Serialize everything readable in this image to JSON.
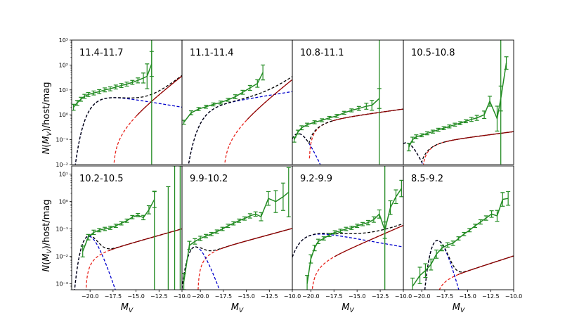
{
  "figure": {
    "ylabel": "N(M_V)/host/mag",
    "xlabel": "M_V"
  },
  "colors": {
    "data": "#228b22",
    "model_total": "#000000",
    "model_bright": "#0000cc",
    "model_faint": "#e8231c",
    "model_faint_overlay": "#8b0000"
  },
  "chart_data": [
    {
      "type": "line",
      "panel_label": "11.4-11.7",
      "row": 0,
      "col": 0,
      "ylim": [
        0.01,
        1000
      ],
      "log_y": true,
      "xlim": [
        -22,
        -10
      ],
      "y_ticks": [
        "10⁻²",
        "10⁻¹",
        "10⁰",
        "10¹",
        "10²",
        "10³"
      ],
      "data": {
        "x": [
          -21.8,
          -21.4,
          -21.0,
          -20.6,
          -20.2,
          -19.6,
          -19.0,
          -18.4,
          -17.8,
          -17.2,
          -16.6,
          -16.0,
          -15.4,
          -14.8,
          -14.2,
          -13.8,
          -13.3
        ],
        "y": [
          2.0,
          3.0,
          4.2,
          5.5,
          6.5,
          7.5,
          8.5,
          10,
          11,
          13,
          15,
          17,
          20,
          24,
          30,
          35,
          110
        ],
        "err": [
          0.12,
          0.1,
          0.08,
          0.08,
          0.08,
          0.08,
          0.08,
          0.08,
          0.08,
          0.08,
          0.08,
          0.08,
          0.08,
          0.1,
          0.2,
          0.5,
          0.5
        ],
        "drop_x": -13.3
      },
      "bright": {
        "phi": 7.5,
        "Ms": -19.5,
        "alpha": -0.85
      },
      "faint": {
        "A": 0.3,
        "Mc": -17.5,
        "w": 3.0,
        "g": 0.65
      }
    },
    {
      "type": "line",
      "panel_label": "11.1-11.4",
      "row": 0,
      "col": 1,
      "ylim": [
        0.01,
        1000
      ],
      "log_y": true,
      "xlim": [
        -22,
        -10
      ],
      "data": {
        "x": [
          -21.8,
          -21.0,
          -20.2,
          -19.4,
          -18.6,
          -17.8,
          -17.0,
          -16.2,
          -15.4,
          -14.6,
          -13.8,
          -13.2
        ],
        "y": [
          0.5,
          1.2,
          1.7,
          2.1,
          2.6,
          3.1,
          4.0,
          5.3,
          8.0,
          12,
          18,
          50
        ],
        "err": [
          0.08,
          0.08,
          0.06,
          0.06,
          0.06,
          0.06,
          0.06,
          0.08,
          0.08,
          0.1,
          0.15,
          0.3
        ]
      },
      "bright": {
        "phi": 2.3,
        "Ms": -19.5,
        "alpha": -1.15
      },
      "faint": {
        "A": 0.2,
        "Mc": -17.5,
        "w": 3.0,
        "g": 0.66
      }
    },
    {
      "type": "line",
      "panel_label": "10.8-11.1",
      "row": 0,
      "col": 2,
      "ylim": [
        0.01,
        1000
      ],
      "log_y": true,
      "xlim": [
        -22,
        -10
      ],
      "data": {
        "x": [
          -21.8,
          -21.4,
          -21.0,
          -20.4,
          -19.6,
          -18.8,
          -18.0,
          -17.2,
          -16.4,
          -15.6,
          -14.8,
          -14.0,
          -13.4,
          -12.6
        ],
        "y": [
          0.1,
          0.2,
          0.3,
          0.4,
          0.5,
          0.6,
          0.75,
          0.9,
          1.2,
          1.5,
          1.8,
          2.2,
          2.4,
          4.5
        ],
        "err": [
          0.1,
          0.08,
          0.08,
          0.06,
          0.06,
          0.06,
          0.06,
          0.06,
          0.06,
          0.06,
          0.08,
          0.12,
          0.2,
          0.4
        ],
        "drop_x": -12.6
      },
      "bright": {
        "phi": 0.28,
        "Ms": -20.5,
        "alpha": 1.2
      },
      "faint": {
        "A": 0.5,
        "Mc": -20.2,
        "w": 1.4,
        "g": 0.12
      }
    },
    {
      "type": "line",
      "panel_label": "10.5-10.8",
      "row": 0,
      "col": 3,
      "ylim": [
        0.01,
        1000
      ],
      "log_y": true,
      "xlim": [
        -22,
        -10
      ],
      "data": {
        "x": [
          -21.4,
          -21.0,
          -20.6,
          -20.0,
          -19.4,
          -18.8,
          -18.2,
          -17.6,
          -17.0,
          -16.4,
          -15.8,
          -15.2,
          -14.6,
          -14.0,
          -13.2,
          -12.6,
          -11.8,
          -11.4,
          -10.8
        ],
        "y": [
          0.05,
          0.1,
          0.13,
          0.15,
          0.18,
          0.21,
          0.25,
          0.29,
          0.34,
          0.4,
          0.46,
          0.55,
          0.65,
          0.75,
          1.0,
          3.5,
          0.7,
          4.5,
          120
        ],
        "err": [
          0.15,
          0.1,
          0.08,
          0.06,
          0.06,
          0.06,
          0.06,
          0.06,
          0.06,
          0.06,
          0.06,
          0.06,
          0.08,
          0.1,
          0.15,
          0.2,
          0.5,
          0.5,
          0.25
        ],
        "drop_x": -11.4
      },
      "bright": {
        "phi": 0.11,
        "Ms": -20.8,
        "alpha": 1.3
      },
      "faint": {
        "A": 0.07,
        "Mc": -20.0,
        "w": 1.2,
        "g": 0.11
      }
    },
    {
      "type": "line",
      "panel_label": "10.2-10.5",
      "row": 1,
      "col": 0,
      "ylim": [
        0.0006,
        20
      ],
      "log_y": true,
      "xlim": [
        -22,
        -10
      ],
      "y_ticks": [
        "10⁻³",
        "10⁻²",
        "10⁻¹",
        "10⁰",
        "10¹"
      ],
      "data": {
        "x": [
          -20.8,
          -20.2,
          -19.6,
          -19.0,
          -18.4,
          -17.8,
          -17.2,
          -16.6,
          -16.0,
          -15.4,
          -14.8,
          -14.2,
          -13.6,
          -13.0
        ],
        "y": [
          0.015,
          0.05,
          0.075,
          0.09,
          0.1,
          0.11,
          0.13,
          0.16,
          0.2,
          0.27,
          0.32,
          0.26,
          0.5,
          1.2
        ],
        "err": [
          0.2,
          0.1,
          0.08,
          0.06,
          0.06,
          0.06,
          0.06,
          0.06,
          0.06,
          0.06,
          0.06,
          0.08,
          0.15,
          0.3
        ],
        "extra_bars": [
          [
            -13.0,
            0.0006,
            2.3
          ],
          [
            -11.5,
            0.0006,
            3.5
          ],
          [
            -10.8,
            0.0006,
            20
          ],
          [
            -10.2,
            0.0006,
            20
          ]
        ]
      },
      "bright": {
        "phi": 0.06,
        "Ms": -19.1,
        "alpha": 1.6
      },
      "faint": {
        "A": 0.01,
        "Mc": -20.5,
        "w": 1.0,
        "g": 0.22
      }
    },
    {
      "type": "line",
      "panel_label": "9.9-10.2",
      "row": 1,
      "col": 1,
      "ylim": [
        0.0006,
        20
      ],
      "log_y": true,
      "xlim": [
        -22,
        -10
      ],
      "data": {
        "x": [
          -21.8,
          -21.2,
          -20.6,
          -20.0,
          -19.4,
          -18.8,
          -18.2,
          -17.6,
          -17.0,
          -16.4,
          -15.8,
          -15.2,
          -14.6,
          -14.0,
          -13.4,
          -12.6,
          -11.8,
          -11.0,
          -10.4
        ],
        "y": [
          0.0012,
          0.025,
          0.035,
          0.045,
          0.055,
          0.065,
          0.08,
          0.1,
          0.13,
          0.16,
          0.2,
          0.24,
          0.3,
          0.35,
          0.28,
          1.3,
          1.0,
          1.5,
          2.2
        ],
        "err": [
          0.3,
          0.15,
          0.1,
          0.08,
          0.06,
          0.06,
          0.06,
          0.06,
          0.06,
          0.06,
          0.06,
          0.06,
          0.08,
          0.08,
          0.15,
          0.25,
          0.4,
          0.5,
          0.9
        ]
      },
      "bright": {
        "phi": 0.03,
        "Ms": -19.6,
        "alpha": 1.4
      },
      "faint": {
        "A": 0.012,
        "Mc": -20.3,
        "w": 1.0,
        "g": 0.21
      }
    },
    {
      "type": "line",
      "panel_label": "9.2-9.9",
      "row": 1,
      "col": 2,
      "ylim": [
        0.0006,
        20
      ],
      "log_y": true,
      "xlim": [
        -22,
        -10
      ],
      "data": {
        "x": [
          -20.4,
          -20.0,
          -19.6,
          -19.2,
          -18.6,
          -18.0,
          -17.4,
          -16.8,
          -16.2,
          -15.6,
          -15.0,
          -14.4,
          -13.8,
          -13.2,
          -12.6,
          -12.0,
          -11.4,
          -10.8,
          -10.2
        ],
        "y": [
          0.001,
          0.008,
          0.02,
          0.035,
          0.045,
          0.06,
          0.075,
          0.085,
          0.1,
          0.11,
          0.13,
          0.15,
          0.17,
          0.22,
          0.35,
          0.09,
          0.6,
          1.5,
          3.0
        ],
        "err": [
          0.3,
          0.15,
          0.1,
          0.08,
          0.06,
          0.06,
          0.06,
          0.06,
          0.06,
          0.06,
          0.06,
          0.06,
          0.08,
          0.1,
          0.15,
          0.3,
          0.25,
          0.25,
          0.3
        ],
        "drop_x": -12.0
      },
      "bright": {
        "phi": 0.1,
        "Ms": -21.0,
        "alpha": -0.85
      },
      "faint": {
        "A": 0.0045,
        "Mc": -20.0,
        "w": 1.1,
        "g": 0.34
      }
    },
    {
      "type": "line",
      "panel_label": "8.5-9.2",
      "row": 1,
      "col": 3,
      "ylim": [
        0.0006,
        20
      ],
      "log_y": true,
      "xlim": [
        -22,
        -10
      ],
      "data": {
        "x": [
          -21.0,
          -20.2,
          -19.6,
          -19.0,
          -18.4,
          -17.8,
          -17.2,
          -16.6,
          -16.0,
          -15.4,
          -14.8,
          -14.2,
          -13.6,
          -13.0,
          -12.4,
          -11.8,
          -11.2,
          -10.6
        ],
        "y": [
          0.0008,
          0.002,
          0.003,
          0.005,
          0.012,
          0.02,
          0.026,
          0.03,
          0.045,
          0.065,
          0.09,
          0.13,
          0.18,
          0.25,
          0.35,
          0.3,
          1.2,
          1.3
        ],
        "err": [
          0.3,
          0.3,
          0.25,
          0.2,
          0.15,
          0.1,
          0.08,
          0.08,
          0.06,
          0.06,
          0.06,
          0.06,
          0.08,
          0.08,
          0.12,
          0.2,
          0.25,
          0.25
        ]
      },
      "bright": {
        "phi": 0.02,
        "Ms": -17.0,
        "alpha": 2.3
      },
      "faint": {
        "A": 0.0012,
        "Mc": -18.6,
        "w": 0.9,
        "g": 0.25
      }
    }
  ],
  "x_ticks": [
    "−20.0",
    "−17.5",
    "−15.0",
    "−12.5",
    "−10.0"
  ]
}
